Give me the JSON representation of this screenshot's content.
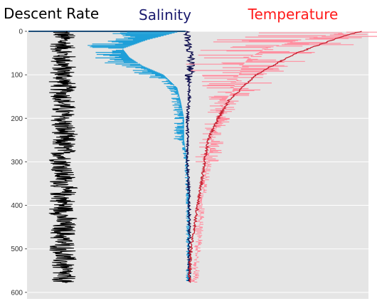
{
  "chart_data": {
    "type": "line",
    "titles": [
      {
        "text": "Descent Rate",
        "color": "#000000"
      },
      {
        "text": "Salinity",
        "color": "#1a1a6e"
      },
      {
        "text": "Temperature",
        "color": "#ff1a1a"
      }
    ],
    "y_axis": {
      "label": "",
      "ticks": [
        0,
        100,
        200,
        300,
        400,
        500,
        600
      ],
      "range": [
        0,
        615
      ],
      "inverted": true
    },
    "grid": true,
    "background": "#e5e5e5",
    "surface_line_color": "#1f4e79",
    "series": [
      {
        "role": "descent-rate",
        "color": "#000000",
        "depth_range": [
          0,
          578
        ],
        "mean_x": 0.105,
        "amplitude": 0.045
      },
      {
        "role": "salinity-raw",
        "color": "#1f9fd8",
        "profile_depth": [
          0,
          20,
          40,
          60,
          80,
          100,
          130,
          160,
          200,
          250,
          300,
          400,
          500,
          578
        ],
        "profile_x": [
          0.45,
          0.35,
          0.28,
          0.3,
          0.34,
          0.4,
          0.44,
          0.45,
          0.46,
          0.46,
          0.47,
          0.475,
          0.475,
          0.475
        ]
      },
      {
        "role": "salinity-mean",
        "color": "#0d0d4d",
        "profile_depth": [
          0,
          20,
          40,
          60,
          80,
          100,
          150,
          200,
          300,
          400,
          500,
          578
        ],
        "profile_x": [
          0.465,
          0.47,
          0.475,
          0.48,
          0.48,
          0.475,
          0.475,
          0.47,
          0.47,
          0.475,
          0.475,
          0.475
        ]
      },
      {
        "role": "temperature-raw",
        "color": "#ff8fa0",
        "profile_depth": [
          0,
          20,
          40,
          60,
          80,
          100,
          140,
          160,
          200,
          250,
          300,
          350,
          400,
          500,
          578
        ],
        "profile_x": [
          0.95,
          0.8,
          0.7,
          0.65,
          0.63,
          0.62,
          0.6,
          0.58,
          0.56,
          0.54,
          0.53,
          0.52,
          0.51,
          0.5,
          0.49
        ]
      },
      {
        "role": "temperature-mean",
        "color": "#c81e2e",
        "profile_depth": [
          0,
          10,
          30,
          50,
          70,
          100,
          130,
          160,
          200,
          250,
          300,
          350,
          400,
          450,
          500,
          578
        ],
        "profile_x": [
          0.98,
          0.93,
          0.86,
          0.79,
          0.74,
          0.67,
          0.63,
          0.59,
          0.56,
          0.53,
          0.52,
          0.51,
          0.5,
          0.49,
          0.48,
          0.475
        ]
      }
    ]
  }
}
